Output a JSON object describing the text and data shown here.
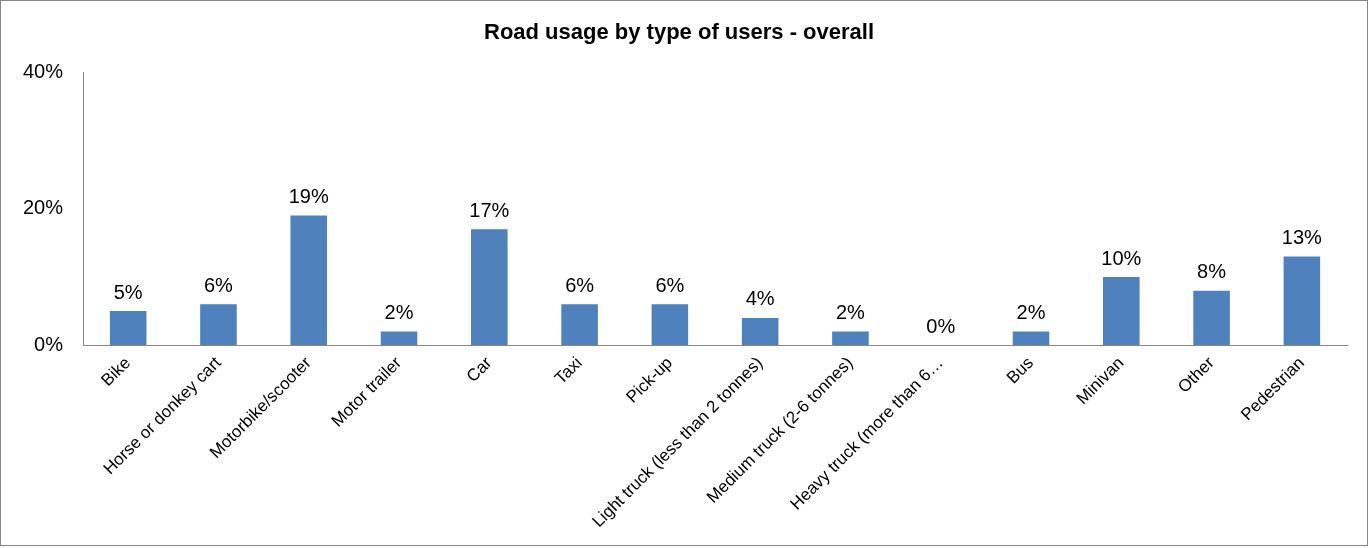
{
  "chart_data": {
    "type": "bar",
    "title": "Road usage by type of users - overall",
    "categories": [
      "Bike",
      "Horse or donkey cart",
      "Motorbike/scooter",
      "Motor trailer",
      "Car",
      "Taxi",
      "Pick-up",
      "Light truck (less than 2 tonnes)",
      "Medium truck (2-6 tonnes)",
      "Heavy truck (more than 6…",
      "Bus",
      "Minivan",
      "Other",
      "Pedestrian"
    ],
    "values": [
      5,
      6,
      19,
      2,
      17,
      6,
      6,
      4,
      2,
      0,
      2,
      10,
      8,
      13
    ],
    "value_labels": [
      "5%",
      "6%",
      "19%",
      "2%",
      "17%",
      "6%",
      "6%",
      "4%",
      "2%",
      "0%",
      "2%",
      "10%",
      "8%",
      "13%"
    ],
    "color": "#4f81bd",
    "ylim": [
      0,
      40
    ],
    "yticks": [
      {
        "value": 0,
        "label": "0%"
      },
      {
        "value": 20,
        "label": "20%"
      },
      {
        "value": 40,
        "label": "40%"
      }
    ],
    "grid": false,
    "legend": false
  }
}
